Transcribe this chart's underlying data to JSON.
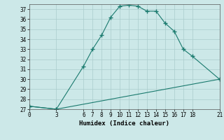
{
  "xlabel": "Humidex (Indice chaleur)",
  "ylabel": "",
  "bg_color": "#cce8e8",
  "line_color": "#1a7a6e",
  "grid_color": "#aacccc",
  "series1_x": [
    0,
    3,
    6,
    7,
    8,
    9,
    10,
    11,
    12,
    13,
    14,
    15,
    16,
    17,
    18,
    21
  ],
  "series1_y": [
    27.3,
    27.0,
    31.3,
    33.0,
    34.4,
    36.2,
    37.3,
    37.4,
    37.3,
    36.8,
    36.8,
    35.6,
    34.8,
    33.0,
    32.3,
    30.0
  ],
  "series2_x": [
    0,
    3,
    21
  ],
  "series2_y": [
    27.3,
    27.0,
    30.0
  ],
  "ylim": [
    27,
    37.5
  ],
  "yticks": [
    27,
    28,
    29,
    30,
    31,
    32,
    33,
    34,
    35,
    36,
    37
  ],
  "xticks": [
    0,
    3,
    6,
    7,
    8,
    9,
    10,
    11,
    12,
    13,
    14,
    15,
    16,
    17,
    18,
    21
  ],
  "xlim": [
    0,
    21
  ],
  "marker": "+",
  "markersize": 4,
  "linewidth": 0.8,
  "axis_fontsize": 6.5,
  "tick_fontsize": 5.5
}
